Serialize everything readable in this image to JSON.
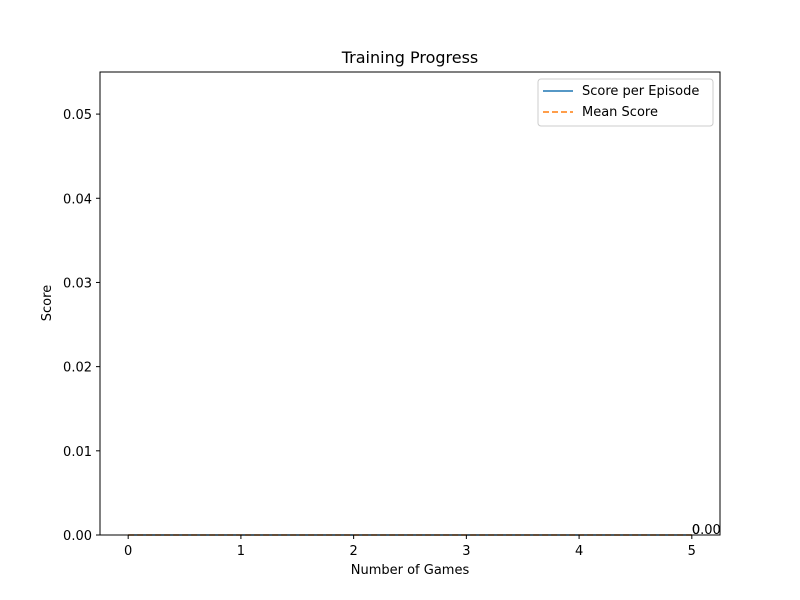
{
  "chart_data": {
    "type": "line",
    "title": "Training Progress",
    "xlabel": "Number of Games",
    "ylabel": "Score",
    "xlim": [
      -0.25,
      5.25
    ],
    "ylim": [
      0,
      0.055
    ],
    "xticks": [
      0,
      1,
      2,
      3,
      4,
      5
    ],
    "xtick_labels": [
      "0",
      "1",
      "2",
      "3",
      "4",
      "5"
    ],
    "yticks": [
      0.0,
      0.01,
      0.02,
      0.03,
      0.04,
      0.05
    ],
    "ytick_labels": [
      "0.00",
      "0.01",
      "0.02",
      "0.03",
      "0.04",
      "0.05"
    ],
    "grid": false,
    "legend_position": "top-right",
    "series": [
      {
        "name": "Score per Episode",
        "style": "solid",
        "color": "#1f77b4",
        "x": [
          0,
          1,
          2,
          3,
          4,
          5
        ],
        "y": [
          0,
          0,
          0,
          0,
          0,
          0
        ],
        "end_label": "0"
      },
      {
        "name": "Mean Score",
        "style": "dashed",
        "color": "#ff7f0e",
        "x": [
          0,
          1,
          2,
          3,
          4,
          5
        ],
        "y": [
          0,
          0,
          0,
          0,
          0,
          0
        ],
        "end_label": "0.00"
      }
    ]
  }
}
